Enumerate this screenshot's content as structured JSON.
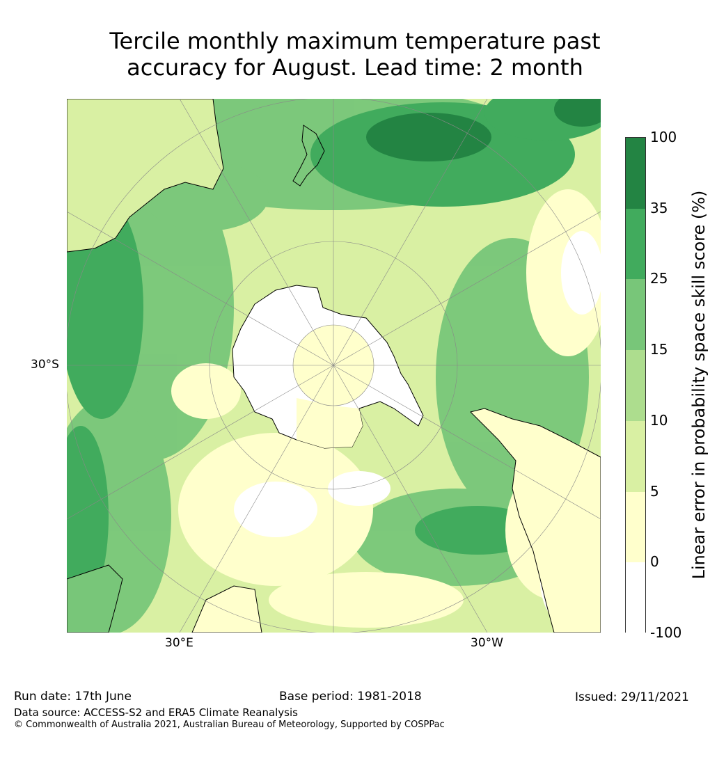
{
  "title_line1": "Tercile monthly maximum temperature past",
  "title_line2": "accuracy for August. Lead time: 2 month",
  "map": {
    "projection": "south-polar-stereographic",
    "lat_label": "30°S",
    "lon_label_east": "30°E",
    "lon_label_west": "30°W",
    "regions": [
      "Antarctica",
      "Australia",
      "New Zealand",
      "South America",
      "Southern Africa"
    ]
  },
  "colorbar": {
    "label": "Linear error in probability space skill score (%)",
    "ticks": [
      "100",
      "35",
      "25",
      "15",
      "10",
      "5",
      "0",
      "-100"
    ],
    "bins": [
      {
        "range": "35 to 100",
        "color": "#238443"
      },
      {
        "range": "25 to 35",
        "color": "#41ab5d"
      },
      {
        "range": "15 to 25",
        "color": "#78c679"
      },
      {
        "range": "10 to 15",
        "color": "#addd8e"
      },
      {
        "range": "5 to 10",
        "color": "#d9f0a3"
      },
      {
        "range": "0 to 5",
        "color": "#ffffcc"
      },
      {
        "range": "-100 to 0",
        "color": "#ffffff"
      }
    ]
  },
  "footer": {
    "run_date": "Run date: 17th June",
    "base_period": "Base period: 1981-2018",
    "issued": "Issued: 29/11/2021",
    "data_source": "Data source: ACCESS-S2 and ERA5 Climate Reanalysis",
    "copyright": "© Commonwealth of Australia 2021, Australian Bureau of Meteorology, Supported by COSPPac"
  }
}
